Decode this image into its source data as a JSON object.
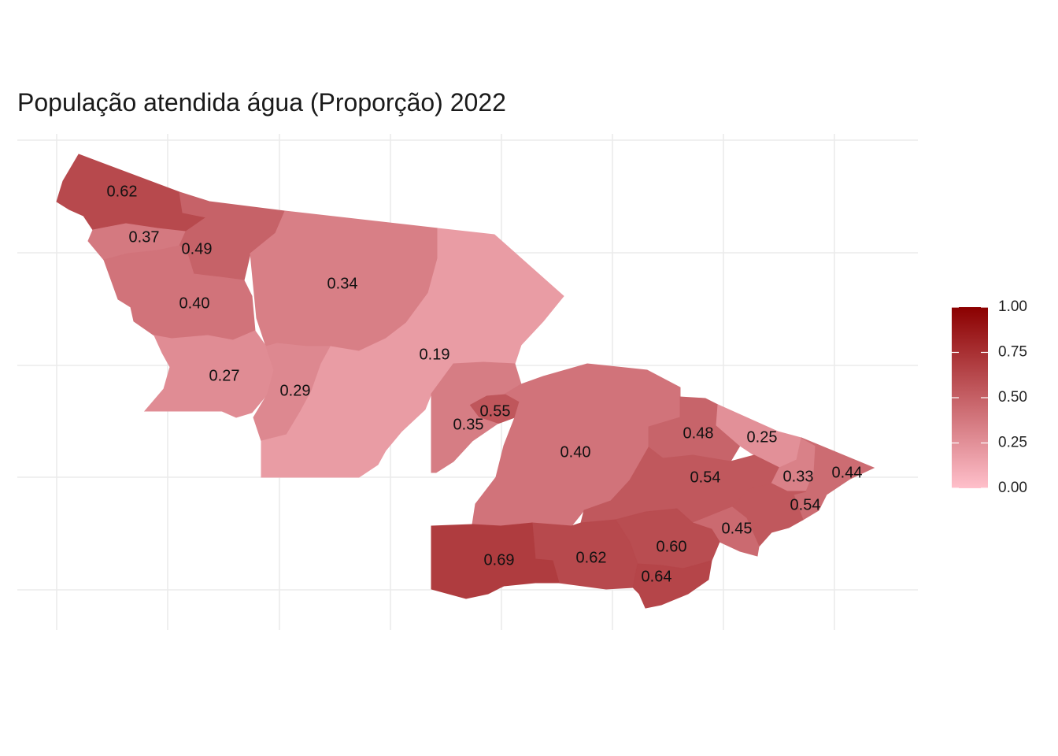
{
  "title": "População atendida água (Proporção) 2022",
  "legend": {
    "ticks": [
      "1.00",
      "0.75",
      "0.50",
      "0.25",
      "0.00"
    ],
    "tick_values": [
      1.0,
      0.75,
      0.5,
      0.25,
      0.0
    ],
    "color_low": "#ffc0cb",
    "color_high": "#8b0000"
  },
  "regions": [
    {
      "label": "0.62",
      "value": 0.62
    },
    {
      "label": "0.37",
      "value": 0.37
    },
    {
      "label": "0.49",
      "value": 0.49
    },
    {
      "label": "0.40",
      "value": 0.4
    },
    {
      "label": "0.34",
      "value": 0.34
    },
    {
      "label": "0.27",
      "value": 0.27
    },
    {
      "label": "0.29",
      "value": 0.29
    },
    {
      "label": "0.19",
      "value": 0.19
    },
    {
      "label": "0.55",
      "value": 0.55
    },
    {
      "label": "0.35",
      "value": 0.35
    },
    {
      "label": "0.40",
      "value": 0.4
    },
    {
      "label": "0.48",
      "value": 0.48
    },
    {
      "label": "0.25",
      "value": 0.25
    },
    {
      "label": "0.54",
      "value": 0.54
    },
    {
      "label": "0.33",
      "value": 0.33
    },
    {
      "label": "0.44",
      "value": 0.44
    },
    {
      "label": "0.54",
      "value": 0.54
    },
    {
      "label": "0.45",
      "value": 0.45
    },
    {
      "label": "0.60",
      "value": 0.6
    },
    {
      "label": "0.62",
      "value": 0.62
    },
    {
      "label": "0.69",
      "value": 0.69
    },
    {
      "label": "0.64",
      "value": 0.64
    }
  ]
}
